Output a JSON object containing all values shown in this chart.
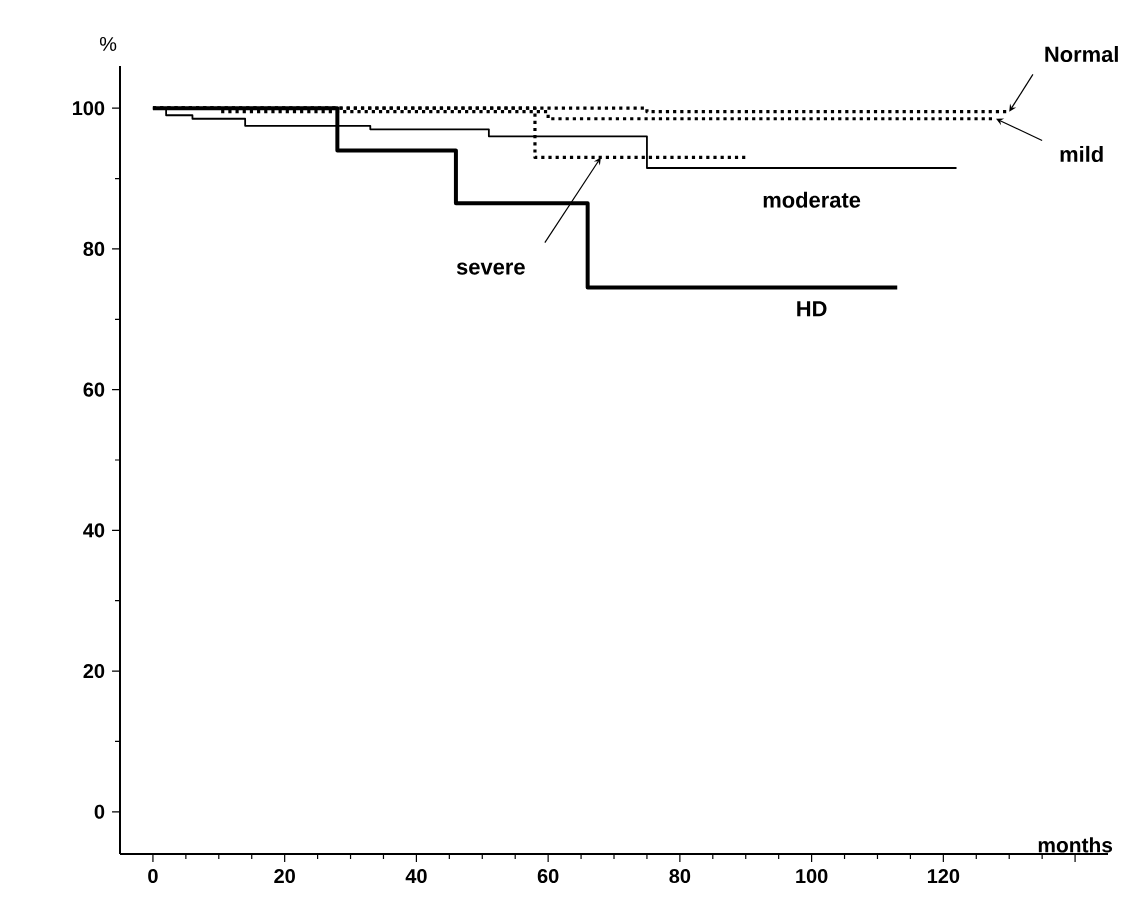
{
  "chart_data": {
    "type": "step",
    "xlabel": "months",
    "ylabel": "%",
    "xlim": [
      -5,
      145
    ],
    "ylim": [
      -6,
      106
    ],
    "xticks": [
      0,
      20,
      40,
      60,
      80,
      100,
      120,
      {
        "value": 140,
        "label": null
      }
    ],
    "yticks": [
      0,
      20,
      40,
      60,
      80,
      100
    ],
    "grid": false,
    "series": [
      {
        "name": "Normal",
        "color": "#000000",
        "line_style": "dotted",
        "x": [
          0,
          75,
          130
        ],
        "values": [
          100,
          99.5,
          99.5
        ]
      },
      {
        "name": "mild",
        "color": "#000000",
        "line_style": "dotted",
        "x": [
          0,
          10,
          60,
          128
        ],
        "values": [
          100,
          99.5,
          98.5,
          98.5
        ]
      },
      {
        "name": "moderate",
        "color": "#000000",
        "line_style": "solid",
        "x": [
          0,
          2,
          6,
          14,
          33,
          51,
          75,
          122
        ],
        "values": [
          100,
          99,
          98.5,
          97.5,
          97,
          96,
          91.5,
          91.5
        ]
      },
      {
        "name": "severe",
        "color": "#000000",
        "line_style": "dotted",
        "x": [
          0,
          58,
          90
        ],
        "values": [
          100,
          93,
          93
        ]
      },
      {
        "name": "HD",
        "color": "#000000",
        "line_style": "solid",
        "x": [
          0,
          28,
          46,
          66,
          113
        ],
        "values": [
          100,
          94,
          86.5,
          74.5,
          74.5
        ]
      }
    ]
  }
}
